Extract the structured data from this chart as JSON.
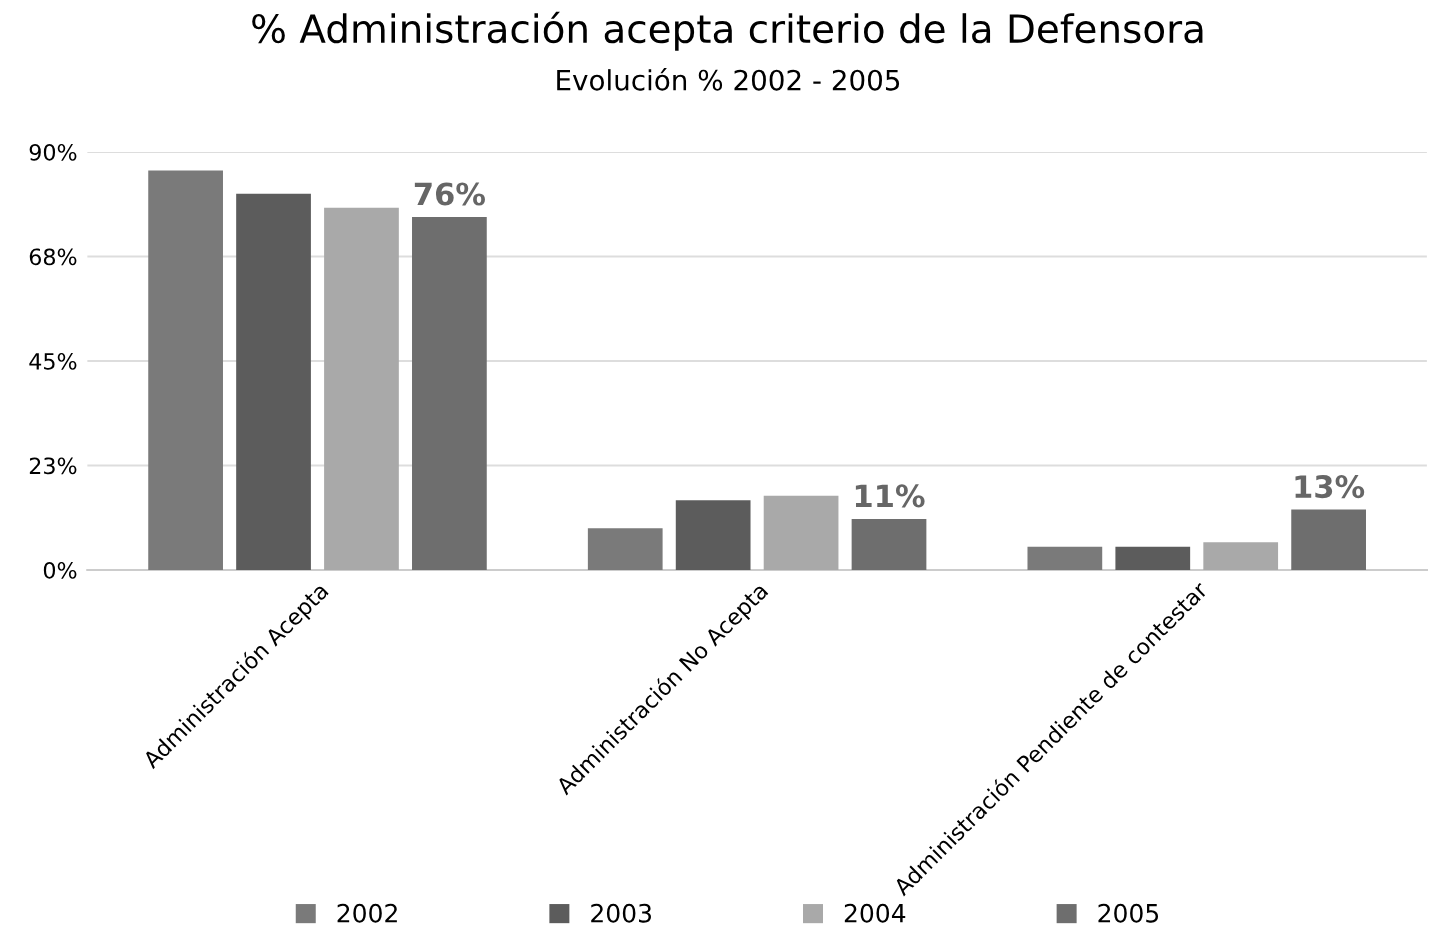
{
  "chart_data": {
    "type": "bar",
    "title": "% Administración acepta criterio de la Defensora",
    "subtitle": "Evolución % 2002 - 2005",
    "categories": [
      "Administración Acepta",
      "Administración No Acepta",
      "Administración Pendiente de contestar"
    ],
    "series": [
      {
        "name": "2002",
        "color": "#7a7a7a",
        "values": [
          86,
          9,
          5
        ]
      },
      {
        "name": "2003",
        "color": "#5c5c5c",
        "values": [
          81,
          15,
          5
        ]
      },
      {
        "name": "2004",
        "color": "#a9a9a9",
        "values": [
          78,
          16,
          6
        ]
      },
      {
        "name": "2005",
        "color": "#6e6e6e",
        "values": [
          76,
          11,
          13
        ],
        "value_labels": [
          "76%",
          "11%",
          "13%"
        ]
      }
    ],
    "ylim": [
      0,
      90
    ],
    "yticks": [
      {
        "value": 0,
        "label": "0%"
      },
      {
        "value": 22.5,
        "label": "23%"
      },
      {
        "value": 45,
        "label": "45%"
      },
      {
        "value": 67.5,
        "label": "68%"
      },
      {
        "value": 90,
        "label": "90%"
      }
    ],
    "grid": "y",
    "legend": "bottom"
  }
}
